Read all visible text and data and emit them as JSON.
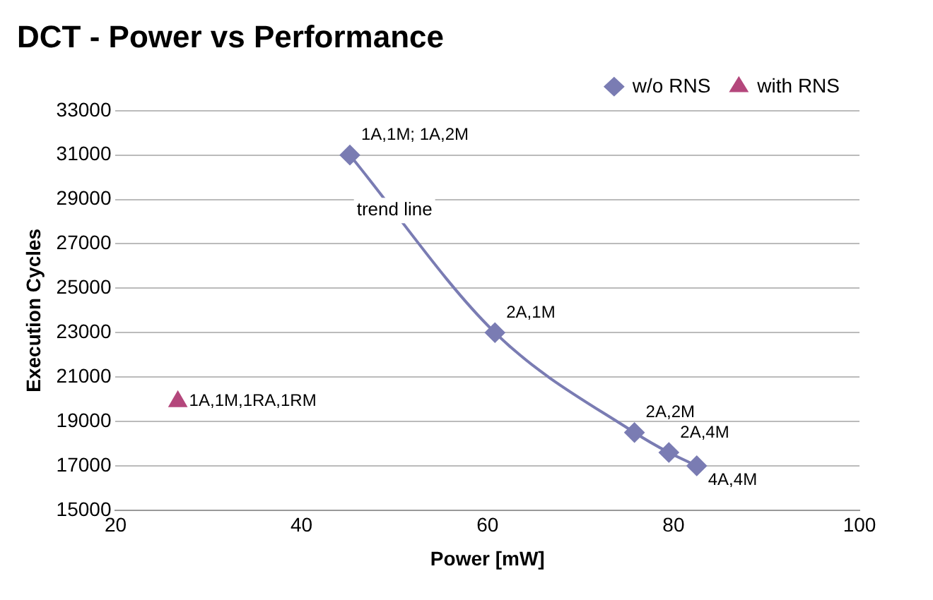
{
  "chart_data": {
    "type": "line",
    "title": "DCT - Power vs Performance",
    "xlabel": "Power [mW]",
    "ylabel": "Execution Cycles",
    "xlim": [
      20,
      100
    ],
    "xticks": [
      20,
      40,
      60,
      80,
      100
    ],
    "ylim": [
      15000,
      33000
    ],
    "yticks": [
      15000,
      17000,
      19000,
      21000,
      23000,
      25000,
      27000,
      29000,
      31000,
      33000
    ],
    "grid": "y",
    "legend": "top right",
    "series": [
      {
        "name": "w/o RNS",
        "type": "line",
        "marker": "diamond",
        "color": "#7a7cb3",
        "x": [
          45.2,
          60.8,
          75.8,
          79.5,
          82.5
        ],
        "values": [
          31000,
          23000,
          18500,
          17600,
          17000
        ]
      },
      {
        "name": "with RNS",
        "type": "scatter",
        "marker": "triangle",
        "color": "#b4477c",
        "x": [
          26.7
        ],
        "values": [
          19900
        ]
      }
    ],
    "annotations": [
      {
        "text": "1A,1M; 1A,2M",
        "x": 45.2,
        "y": 31000
      },
      {
        "text": "2A,1M",
        "x": 60.8,
        "y": 23000
      },
      {
        "text": "2A,2M",
        "x": 75.8,
        "y": 18500
      },
      {
        "text": "2A,4M",
        "x": 79.5,
        "y": 17600
      },
      {
        "text": "4A,4M",
        "x": 82.5,
        "y": 17000
      },
      {
        "text": "1A,1M,1RA,1RM",
        "x": 26.7,
        "y": 19900
      },
      {
        "text": "trend line",
        "x": 50,
        "y": 28500
      }
    ]
  }
}
